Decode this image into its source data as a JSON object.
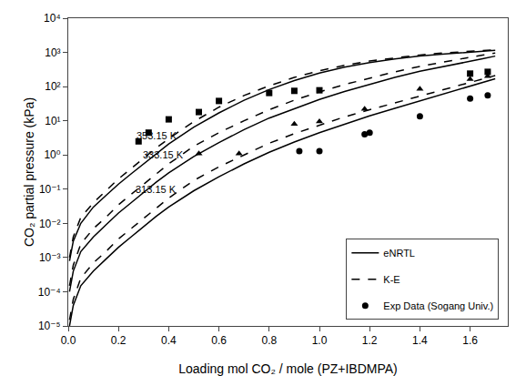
{
  "chart_data": {
    "type": "line",
    "xlabel": "Loading mol CO₂ / mole (PZ+IBDMPA)",
    "ylabel": "CO₂ partial pressure (kPa)",
    "log": "y",
    "grid": false,
    "legend": "lower right",
    "xlim": [
      0.0,
      1.75
    ],
    "xticks": [
      {
        "value": 0.0,
        "label": "0.0"
      },
      0.2,
      0.4,
      0.6,
      0.8,
      {
        "value": 1.0,
        "label": "1.0"
      },
      1.2,
      1.4,
      1.6
    ],
    "ylim": [
      1e-05,
      10000.0
    ],
    "yticks": [
      {
        "value": 1e-05,
        "label": "10⁻⁵"
      },
      {
        "value": 0.0001,
        "label": "10⁻⁴"
      },
      {
        "value": 0.001,
        "label": "10⁻³"
      },
      {
        "value": 0.01,
        "label": "10⁻²"
      },
      {
        "value": 0.1,
        "label": "10⁻¹"
      },
      {
        "value": 1,
        "label": "10⁰"
      },
      {
        "value": 10,
        "label": "10¹"
      },
      {
        "value": 100,
        "label": "10²"
      },
      {
        "value": 1000,
        "label": "10³"
      },
      {
        "value": 10000,
        "label": "10⁴"
      }
    ],
    "series": [
      {
        "name": "eNRTL",
        "type": "line",
        "line_style": "solid",
        "color": "black",
        "x": [
          0.005,
          0.02,
          0.05,
          0.1,
          0.15,
          0.2,
          0.25,
          0.3,
          0.35,
          0.4,
          0.5,
          0.6,
          0.7,
          0.8,
          0.9,
          1.0,
          1.1,
          1.2,
          1.3,
          1.4,
          1.5,
          1.6,
          1.65,
          1.7
        ],
        "values": [
          1e-05,
          4e-05,
          0.00015,
          0.0004,
          0.0009,
          0.002,
          0.004,
          0.008,
          0.016,
          0.03,
          0.09,
          0.23,
          0.55,
          1.2,
          2.4,
          4.5,
          8.0,
          14.0,
          23.0,
          38.0,
          62.0,
          100.0,
          130.0,
          170.0
        ]
      },
      {
        "name": "eNRTL",
        "type": "line",
        "line_style": "solid",
        "color": "black",
        "x": [
          0.005,
          0.02,
          0.05,
          0.1,
          0.15,
          0.2,
          0.25,
          0.3,
          0.35,
          0.4,
          0.5,
          0.6,
          0.7,
          0.8,
          0.9,
          1.0,
          1.1,
          1.2,
          1.3,
          1.4,
          1.5,
          1.6,
          1.65,
          1.7
        ],
        "values": [
          0.0001,
          0.0004,
          0.0015,
          0.004,
          0.009,
          0.02,
          0.04,
          0.08,
          0.16,
          0.3,
          0.9,
          2.3,
          5.5,
          12.0,
          23.0,
          42.0,
          72.0,
          118.0,
          185.0,
          280.0,
          400.0,
          550.0,
          650.0,
          780.0
        ]
      },
      {
        "name": "eNRTL",
        "type": "line",
        "line_style": "solid",
        "color": "black",
        "x": [
          0.005,
          0.02,
          0.05,
          0.1,
          0.15,
          0.2,
          0.25,
          0.3,
          0.35,
          0.4,
          0.5,
          0.6,
          0.7,
          0.8,
          0.9,
          1.0,
          1.1,
          1.2,
          1.3,
          1.4,
          1.5,
          1.6,
          1.65,
          1.7
        ],
        "values": [
          0.0008,
          0.003,
          0.01,
          0.03,
          0.065,
          0.14,
          0.28,
          0.55,
          1.1,
          2.1,
          6.5,
          17.0,
          40.0,
          82.0,
          150.0,
          250.0,
          370.0,
          500.0,
          640.0,
          780.0,
          900.0,
          1020.0,
          1080.0,
          1150.0
        ]
      },
      {
        "name": "K-E",
        "type": "line",
        "line_style": "dashed",
        "color": "black",
        "x": [
          0.005,
          0.02,
          0.05,
          0.1,
          0.15,
          0.2,
          0.25,
          0.3,
          0.35,
          0.4,
          0.5,
          0.6,
          0.7,
          0.8,
          0.9,
          1.0,
          1.1,
          1.2,
          1.3,
          1.4,
          1.5,
          1.6,
          1.65,
          1.7
        ],
        "values": [
          1.5e-05,
          6e-05,
          0.00025,
          0.0007,
          0.0015,
          0.0035,
          0.007,
          0.014,
          0.028,
          0.055,
          0.18,
          0.45,
          1.0,
          2.2,
          4.2,
          7.5,
          13.0,
          21.0,
          33.0,
          53.0,
          83.0,
          130.0,
          165.0,
          210.0
        ]
      },
      {
        "name": "K-E",
        "type": "line",
        "line_style": "dashed",
        "color": "black",
        "x": [
          0.005,
          0.02,
          0.05,
          0.1,
          0.15,
          0.2,
          0.25,
          0.3,
          0.35,
          0.4,
          0.5,
          0.6,
          0.7,
          0.8,
          0.9,
          1.0,
          1.1,
          1.2,
          1.3,
          1.4,
          1.5,
          1.6,
          1.65,
          1.7
        ],
        "values": [
          0.00015,
          0.0006,
          0.0025,
          0.007,
          0.015,
          0.035,
          0.07,
          0.14,
          0.28,
          0.55,
          1.8,
          4.5,
          10.0,
          21.0,
          40.0,
          70.0,
          115.0,
          180.0,
          270.0,
          390.0,
          540.0,
          720.0,
          830.0,
          960.0
        ]
      },
      {
        "name": "K-E",
        "type": "line",
        "line_style": "dashed",
        "color": "black",
        "x": [
          0.005,
          0.02,
          0.05,
          0.1,
          0.15,
          0.2,
          0.25,
          0.3,
          0.35,
          0.4,
          0.5,
          0.6,
          0.7,
          0.8,
          0.9,
          1.0,
          1.1,
          1.2,
          1.3,
          1.4,
          1.5,
          1.6,
          1.65,
          1.7
        ],
        "values": [
          0.001,
          0.004,
          0.015,
          0.04,
          0.09,
          0.2,
          0.4,
          0.8,
          1.6,
          3.0,
          9.5,
          25.0,
          55.0,
          105.0,
          185.0,
          290.0,
          420.0,
          560.0,
          700.0,
          840.0,
          970.0,
          1080.0,
          1140.0,
          1200.0
        ]
      },
      {
        "name": "Exp Data (Sogang Univ.)",
        "type": "scatter",
        "marker": "circle",
        "color": "black",
        "x": [
          0.92,
          1.0,
          1.18,
          1.2,
          1.4,
          1.6,
          1.67
        ],
        "values": [
          1.3,
          1.3,
          4.0,
          4.5,
          13.5,
          45.0,
          55.0
        ]
      },
      {
        "name": "Exp Data (Sogang Univ.)",
        "type": "scatter",
        "marker": "triangle-up",
        "color": "black",
        "x": [
          0.52,
          0.68,
          0.9,
          1.0,
          1.18,
          1.4,
          1.6,
          1.67
        ],
        "values": [
          1.1,
          1.1,
          8.0,
          9.5,
          22.0,
          85.0,
          165.0,
          200.0
        ]
      },
      {
        "name": "Exp Data (Sogang Univ.)",
        "type": "scatter",
        "marker": "square",
        "color": "black",
        "x": [
          0.28,
          0.32,
          0.4,
          0.52,
          0.6,
          0.8,
          0.9,
          1.0,
          1.6,
          1.67
        ],
        "values": [
          2.5,
          4.5,
          11.0,
          18.0,
          38.0,
          65.0,
          75.0,
          78.0,
          240.0,
          270.0
        ]
      }
    ],
    "annotations": [
      {
        "text": "353.15 K",
        "x": 0.265,
        "y": 2.2
      },
      {
        "text": "333.15 K",
        "x": 0.29,
        "y": 0.62
      },
      {
        "text": "313.15 K",
        "x": 0.26,
        "y": 0.062
      }
    ]
  }
}
